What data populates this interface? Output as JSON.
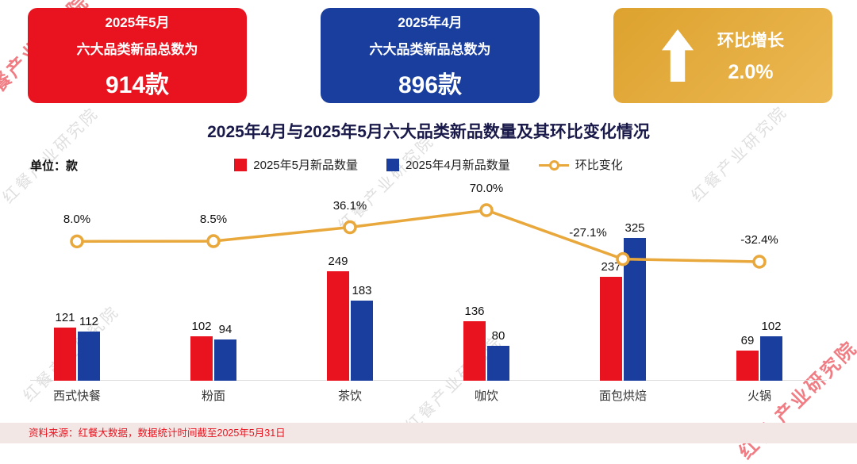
{
  "summary_cards": [
    {
      "month": "2025年5月",
      "desc": "六大品类新品总数为",
      "value": "914款",
      "bg": "#e8131f"
    },
    {
      "month": "2025年4月",
      "desc": "六大品类新品总数为",
      "value": "896款",
      "bg": "#1a3e9e"
    },
    {
      "label": "环比增长",
      "value": "2.0%",
      "bg": "#e4a73c",
      "icon": "up-arrow-icon"
    }
  ],
  "chart_data": {
    "type": "bar",
    "title": "2025年4月与2025年5月六大品类新品数量及其环比变化情况",
    "unit_label": "单位：款",
    "categories": [
      "西式快餐",
      "粉面",
      "茶饮",
      "咖饮",
      "面包烘焙",
      "火锅"
    ],
    "series": [
      {
        "name": "2025年5月新品数量",
        "color": "#e8131f",
        "values": [
          121,
          102,
          249,
          136,
          237,
          69
        ]
      },
      {
        "name": "2025年4月新品数量",
        "color": "#1a3e9e",
        "values": [
          112,
          94,
          183,
          80,
          325,
          102
        ]
      }
    ],
    "line_series": {
      "name": "环比变化",
      "color": "#e9a83b",
      "values_pct": [
        8.0,
        8.5,
        36.1,
        70.0,
        -27.1,
        -32.4
      ],
      "labels": [
        "8.0%",
        "8.5%",
        "36.1%",
        "70.0%",
        "-27.1%",
        "-32.4%"
      ]
    },
    "legend_position": "top-center",
    "grid": false,
    "ylim": [
      0,
      325
    ]
  },
  "footer": {
    "source": "资料来源：红餐大数据，数据统计时间截至2025年5月31日"
  },
  "watermark": "红餐产业研究院",
  "watermark_red": "红餐 产业研究院"
}
